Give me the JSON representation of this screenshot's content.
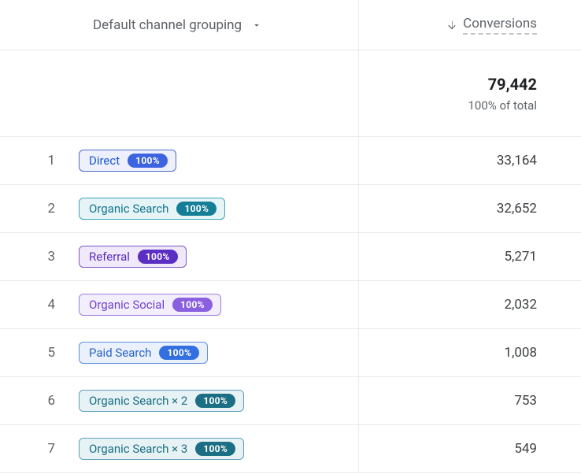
{
  "header": {
    "dimension_label": "Default channel grouping",
    "metric_label": "Conversions",
    "sort_direction": "desc"
  },
  "totals": {
    "value": "79,442",
    "subtext": "100% of total"
  },
  "rows": [
    {
      "index": "1",
      "label": "Direct",
      "pct": "100%",
      "metric": "33,164",
      "chip_border": "#4e6bcf",
      "chip_bg": "#eef1fd",
      "chip_text": "#1a56d6",
      "badge_bg": "#3c63e0"
    },
    {
      "index": "2",
      "label": "Organic Search",
      "pct": "100%",
      "metric": "32,652",
      "chip_border": "#3ba5bd",
      "chip_bg": "#e6f4f7",
      "chip_text": "#12758d",
      "badge_bg": "#157e97"
    },
    {
      "index": "3",
      "label": "Referral",
      "pct": "100%",
      "metric": "5,271",
      "chip_border": "#7e57c2",
      "chip_bg": "#f0e9fb",
      "chip_text": "#5b2ec5",
      "badge_bg": "#5b2ec4"
    },
    {
      "index": "4",
      "label": "Organic Social",
      "pct": "100%",
      "metric": "2,032",
      "chip_border": "#9d7fe0",
      "chip_bg": "#f3eefc",
      "chip_text": "#6f42d0",
      "badge_bg": "#8a5fe0"
    },
    {
      "index": "5",
      "label": "Paid Search",
      "pct": "100%",
      "metric": "1,008",
      "chip_border": "#5f8de3",
      "chip_bg": "#eaf1fd",
      "chip_text": "#2a62c9",
      "badge_bg": "#326fe0"
    },
    {
      "index": "6",
      "label": "Organic Search × 2",
      "pct": "100%",
      "metric": "753",
      "chip_border": "#5ca0b8",
      "chip_bg": "#e7f2f5",
      "chip_text": "#1b6e84",
      "badge_bg": "#1b6e84"
    },
    {
      "index": "7",
      "label": "Organic Search × 3",
      "pct": "100%",
      "metric": "549",
      "chip_border": "#5ca0b8",
      "chip_bg": "#e7f2f5",
      "chip_text": "#1b6e84",
      "badge_bg": "#1b6e84"
    }
  ],
  "colors": {
    "border": "#e8eaed",
    "text_muted": "#5f6368",
    "text_strong": "#202124"
  }
}
